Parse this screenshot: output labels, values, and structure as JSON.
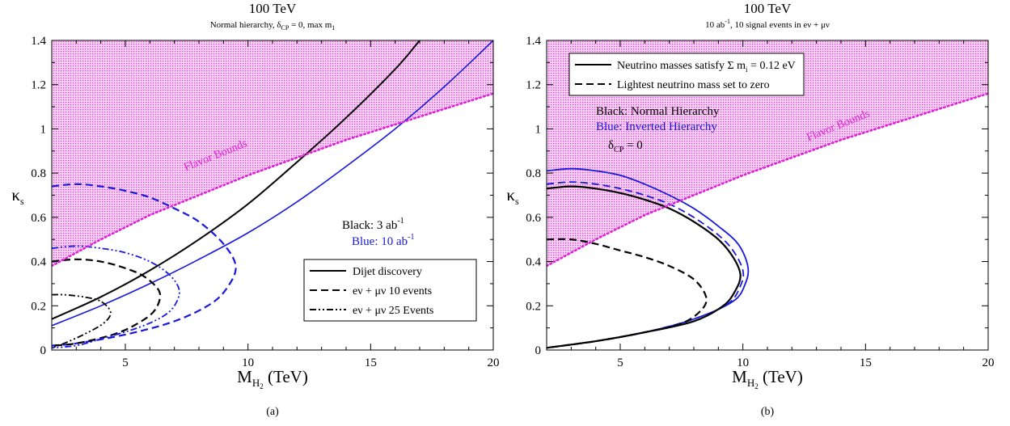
{
  "colors": {
    "black": "#000000",
    "blue": "#1818e0",
    "magenta": "#e020d8",
    "shade": "#f3b9ee"
  },
  "chart_data": [
    {
      "id": "a",
      "type": "line",
      "title": "100 TeV",
      "subtitle": {
        "text": "Normal hierarchy, δ",
        "sub1": "CP",
        "mid": " = 0, max m",
        "sub2": "1"
      },
      "xlabel": {
        "main": "M",
        "sub": "H",
        "subsub": "2",
        "unit": " (TeV)"
      },
      "ylabel": {
        "main": "κ",
        "sub": "s"
      },
      "xlim": [
        2,
        20
      ],
      "ylim": [
        0,
        1.4
      ],
      "xticks": [
        5,
        10,
        15,
        20
      ],
      "xtick_labels": [
        "5",
        "10",
        "15",
        "20"
      ],
      "yticks": [
        0,
        0.2,
        0.4,
        0.6,
        0.8,
        1,
        1.2,
        1.4
      ],
      "ytick_labels": [
        "0",
        "0.2",
        "0.4",
        "0.6",
        "0.8",
        "1",
        "1.2",
        "1.4"
      ],
      "caption": "(a)",
      "flavor_bounds": {
        "label": "Flavor Bounds",
        "x": [
          2,
          4,
          6,
          8,
          10,
          12,
          14,
          16,
          18,
          20
        ],
        "y": [
          0.38,
          0.5,
          0.61,
          0.7,
          0.79,
          0.87,
          0.95,
          1.02,
          1.09,
          1.16
        ]
      },
      "annotations": [
        {
          "name": "black-note",
          "text": "Black: 3 ab",
          "sup": "-1",
          "color": "black"
        },
        {
          "name": "blue-note",
          "text": "Blue: 10 ab",
          "sup": "-1",
          "color": "blue"
        }
      ],
      "legend": {
        "placement": "lower-right",
        "entries": [
          {
            "style": "solid",
            "label": "Dijet discovery"
          },
          {
            "style": "dashed",
            "label": "eν + μν 10 events"
          },
          {
            "style": "dashdotdot",
            "label": "eν + μν 25 Events"
          }
        ]
      },
      "series": [
        {
          "color": "black",
          "style": "solid",
          "width": 2,
          "x": [
            2,
            4,
            6,
            8,
            10,
            12,
            14,
            16,
            17
          ],
          "y": [
            0.14,
            0.24,
            0.36,
            0.5,
            0.66,
            0.85,
            1.05,
            1.27,
            1.4
          ]
        },
        {
          "color": "blue",
          "style": "solid",
          "width": 1.6,
          "x": [
            2,
            4,
            6,
            8,
            10,
            12,
            14,
            16,
            18,
            20
          ],
          "y": [
            0.11,
            0.2,
            0.3,
            0.41,
            0.53,
            0.67,
            0.83,
            1.0,
            1.19,
            1.4
          ]
        },
        {
          "color": "blue",
          "style": "dashed",
          "width": 2.2,
          "x": [
            2,
            3,
            4,
            5,
            6,
            7,
            8,
            9,
            9.5,
            9.2,
            8.5,
            7,
            5,
            3,
            2
          ],
          "y": [
            0.74,
            0.75,
            0.74,
            0.72,
            0.69,
            0.64,
            0.58,
            0.48,
            0.38,
            0.29,
            0.21,
            0.13,
            0.07,
            0.03,
            0.02
          ]
        },
        {
          "color": "black",
          "style": "dashed",
          "width": 2.2,
          "x": [
            2,
            3,
            4,
            5,
            5.8,
            6.4,
            6.2,
            5.5,
            4.5,
            3,
            2
          ],
          "y": [
            0.4,
            0.41,
            0.4,
            0.37,
            0.33,
            0.26,
            0.18,
            0.12,
            0.07,
            0.03,
            0.02
          ]
        },
        {
          "color": "blue",
          "style": "dashdotdot",
          "width": 1.8,
          "x": [
            2,
            3,
            4,
            5,
            6,
            6.8,
            7.2,
            7,
            6.5,
            5.5,
            4,
            3,
            2
          ],
          "y": [
            0.46,
            0.47,
            0.46,
            0.44,
            0.4,
            0.34,
            0.27,
            0.2,
            0.15,
            0.1,
            0.05,
            0.02,
            0.01
          ]
        },
        {
          "color": "black",
          "style": "dashdotdot",
          "width": 1.8,
          "x": [
            2,
            2.5,
            3.3,
            4,
            4.4,
            4.1,
            3.3,
            2.5,
            2
          ],
          "y": [
            0.25,
            0.25,
            0.24,
            0.22,
            0.17,
            0.12,
            0.07,
            0.03,
            0.01
          ]
        }
      ]
    },
    {
      "id": "b",
      "type": "line",
      "title": "100 TeV",
      "subtitle": {
        "text": "10 ab",
        "sup": "-1",
        "rest": ", 10 signal events in eν + μν"
      },
      "xlabel": {
        "main": "M",
        "sub": "H",
        "subsub": "2",
        "unit": " (TeV)"
      },
      "ylabel": {
        "main": "κ",
        "sub": "s"
      },
      "xlim": [
        2,
        20
      ],
      "ylim": [
        0,
        1.4
      ],
      "xticks": [
        5,
        10,
        15,
        20
      ],
      "xtick_labels": [
        "5",
        "10",
        "15",
        "20"
      ],
      "yticks": [
        0,
        0.2,
        0.4,
        0.6,
        0.8,
        1,
        1.2,
        1.4
      ],
      "ytick_labels": [
        "0",
        "0.2",
        "0.4",
        "0.6",
        "0.8",
        "1",
        "1.2",
        "1.4"
      ],
      "caption": "(b)",
      "flavor_bounds": {
        "label": "Flavor Bounds",
        "x": [
          2,
          4,
          6,
          8,
          10,
          12,
          14,
          16,
          18,
          20
        ],
        "y": [
          0.38,
          0.5,
          0.61,
          0.7,
          0.79,
          0.87,
          0.95,
          1.02,
          1.09,
          1.16
        ]
      },
      "annotations": [
        {
          "name": "black-note",
          "text": "Black: Normal Hierarchy",
          "color": "black"
        },
        {
          "name": "blue-note",
          "text": "Blue: Inverted Hierarchy",
          "color": "blue"
        },
        {
          "name": "delta-note",
          "text": "δ",
          "sub": "CP",
          "rest": " = 0",
          "color": "black"
        }
      ],
      "legend": {
        "placement": "top-left",
        "entries": [
          {
            "style": "solid",
            "label": "Neutrino masses satisfy Σ m",
            "sub": "i",
            "rest": " = 0.12 eV"
          },
          {
            "style": "dashed",
            "label": "Lightest neutrino mass set to zero"
          }
        ]
      },
      "series": [
        {
          "color": "blue",
          "style": "solid",
          "width": 1.8,
          "x": [
            2,
            3,
            4,
            5,
            6,
            7,
            8,
            9,
            9.8,
            10.2,
            10.1,
            9.6,
            8,
            6,
            4,
            2
          ],
          "y": [
            0.81,
            0.82,
            0.81,
            0.79,
            0.75,
            0.7,
            0.64,
            0.56,
            0.48,
            0.38,
            0.3,
            0.22,
            0.14,
            0.08,
            0.04,
            0.01
          ]
        },
        {
          "color": "blue",
          "style": "dashed",
          "width": 1.8,
          "x": [
            2,
            3,
            4,
            5,
            6,
            7,
            8,
            9,
            9.6,
            10,
            9.9,
            9.4,
            8,
            6,
            4,
            2
          ],
          "y": [
            0.75,
            0.76,
            0.75,
            0.73,
            0.7,
            0.66,
            0.6,
            0.52,
            0.45,
            0.36,
            0.29,
            0.21,
            0.14,
            0.08,
            0.04,
            0.01
          ]
        },
        {
          "color": "black",
          "style": "solid",
          "width": 2.2,
          "x": [
            2,
            3,
            4,
            5,
            6,
            7,
            8,
            9,
            9.6,
            9.9,
            9.7,
            9.2,
            8,
            6,
            4,
            2
          ],
          "y": [
            0.73,
            0.74,
            0.73,
            0.71,
            0.68,
            0.64,
            0.58,
            0.5,
            0.42,
            0.34,
            0.27,
            0.2,
            0.13,
            0.08,
            0.04,
            0.01
          ]
        },
        {
          "color": "black",
          "style": "dashed",
          "width": 2.2,
          "x": [
            2,
            3,
            4,
            5,
            6,
            7,
            8,
            8.5,
            8.3,
            7.5,
            6,
            4,
            2
          ],
          "y": [
            0.5,
            0.5,
            0.48,
            0.45,
            0.42,
            0.38,
            0.32,
            0.24,
            0.18,
            0.12,
            0.08,
            0.04,
            0.01
          ]
        }
      ]
    }
  ]
}
